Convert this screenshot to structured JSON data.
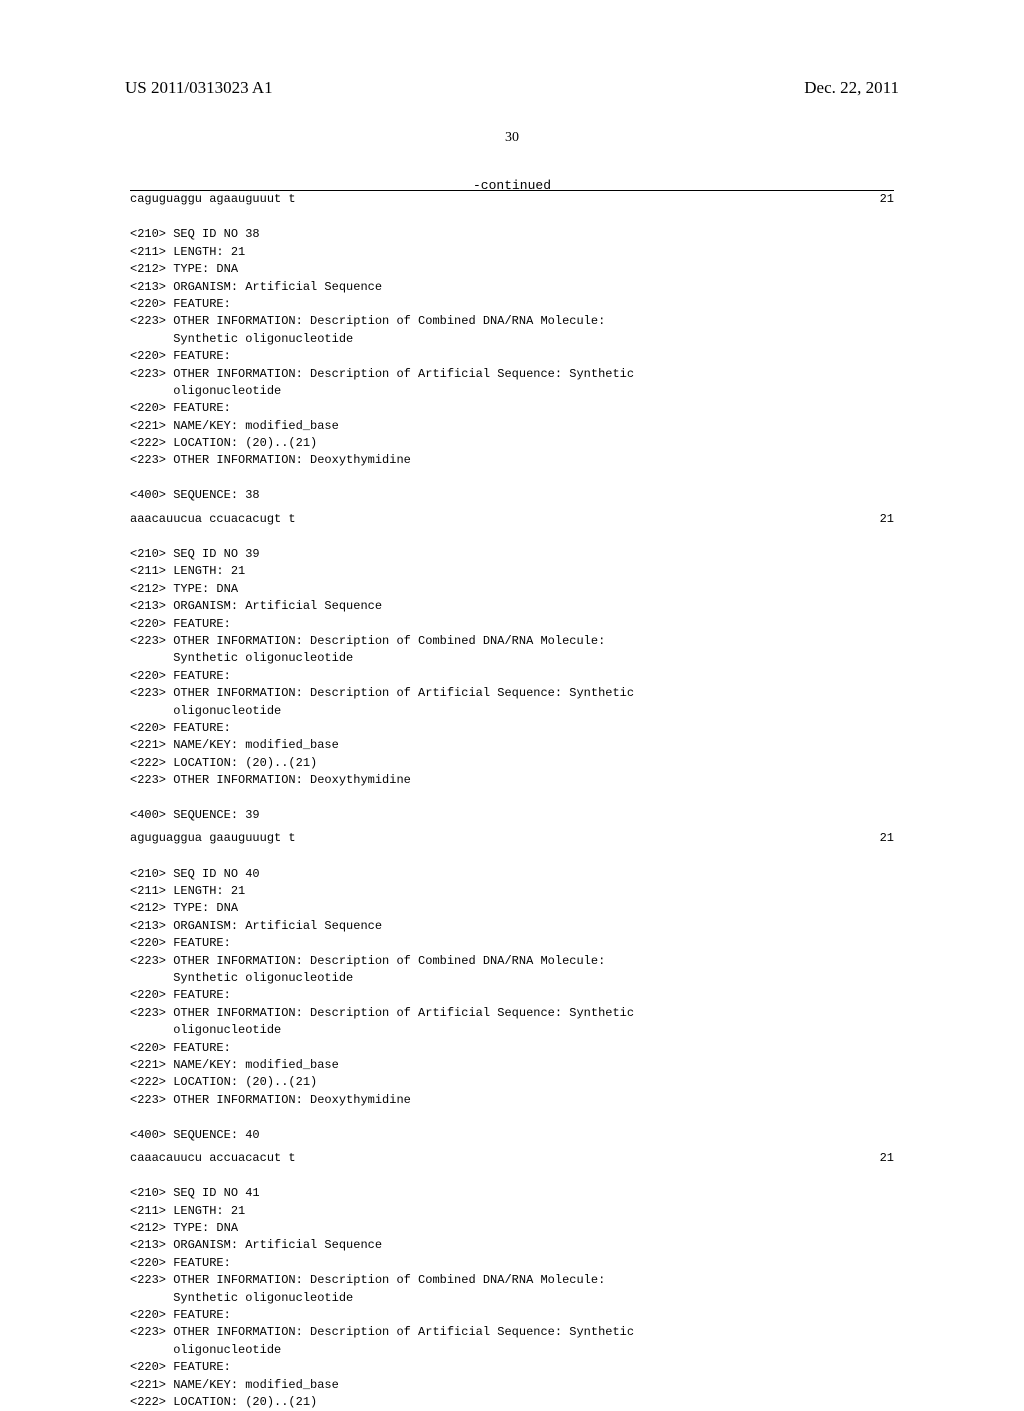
{
  "header": {
    "publication_number": "US 2011/0313023 A1",
    "date": "Dec. 22, 2011",
    "page_number": "30",
    "continued_label": "-continued"
  },
  "listing": {
    "blocks": [
      {
        "type": "sequence_line",
        "sequence": "caguguaggu agaauguuut t",
        "length": "21"
      },
      {
        "type": "entry",
        "lines": [
          "<210> SEQ ID NO 38",
          "<211> LENGTH: 21",
          "<212> TYPE: DNA",
          "<213> ORGANISM: Artificial Sequence",
          "<220> FEATURE:",
          "<223> OTHER INFORMATION: Description of Combined DNA/RNA Molecule:",
          "      Synthetic oligonucleotide",
          "<220> FEATURE:",
          "<223> OTHER INFORMATION: Description of Artificial Sequence: Synthetic",
          "      oligonucleotide",
          "<220> FEATURE:",
          "<221> NAME/KEY: modified_base",
          "<222> LOCATION: (20)..(21)",
          "<223> OTHER INFORMATION: Deoxythymidine",
          "",
          "<400> SEQUENCE: 38"
        ],
        "sequence": "aaacauucua ccuacacugt t",
        "length": "21"
      },
      {
        "type": "entry",
        "lines": [
          "<210> SEQ ID NO 39",
          "<211> LENGTH: 21",
          "<212> TYPE: DNA",
          "<213> ORGANISM: Artificial Sequence",
          "<220> FEATURE:",
          "<223> OTHER INFORMATION: Description of Combined DNA/RNA Molecule:",
          "      Synthetic oligonucleotide",
          "<220> FEATURE:",
          "<223> OTHER INFORMATION: Description of Artificial Sequence: Synthetic",
          "      oligonucleotide",
          "<220> FEATURE:",
          "<221> NAME/KEY: modified_base",
          "<222> LOCATION: (20)..(21)",
          "<223> OTHER INFORMATION: Deoxythymidine",
          "",
          "<400> SEQUENCE: 39"
        ],
        "sequence": "aguguaggua gaauguuugt t",
        "length": "21"
      },
      {
        "type": "entry",
        "lines": [
          "<210> SEQ ID NO 40",
          "<211> LENGTH: 21",
          "<212> TYPE: DNA",
          "<213> ORGANISM: Artificial Sequence",
          "<220> FEATURE:",
          "<223> OTHER INFORMATION: Description of Combined DNA/RNA Molecule:",
          "      Synthetic oligonucleotide",
          "<220> FEATURE:",
          "<223> OTHER INFORMATION: Description of Artificial Sequence: Synthetic",
          "      oligonucleotide",
          "<220> FEATURE:",
          "<221> NAME/KEY: modified_base",
          "<222> LOCATION: (20)..(21)",
          "<223> OTHER INFORMATION: Deoxythymidine",
          "",
          "<400> SEQUENCE: 40"
        ],
        "sequence": "caaacauucu accuacacut t",
        "length": "21"
      },
      {
        "type": "entry_partial",
        "lines": [
          "<210> SEQ ID NO 41",
          "<211> LENGTH: 21",
          "<212> TYPE: DNA",
          "<213> ORGANISM: Artificial Sequence",
          "<220> FEATURE:",
          "<223> OTHER INFORMATION: Description of Combined DNA/RNA Molecule:",
          "      Synthetic oligonucleotide",
          "<220> FEATURE:",
          "<223> OTHER INFORMATION: Description of Artificial Sequence: Synthetic",
          "      oligonucleotide",
          "<220> FEATURE:",
          "<221> NAME/KEY: modified_base",
          "<222> LOCATION: (20)..(21)"
        ]
      }
    ]
  },
  "style": {
    "body_font": "Times New Roman",
    "mono_font": "Courier New",
    "mono_fontsize": 12,
    "header_fontsize": 17,
    "page_number_fontsize": 14,
    "rule_color": "#000000",
    "background_color": "#ffffff"
  }
}
